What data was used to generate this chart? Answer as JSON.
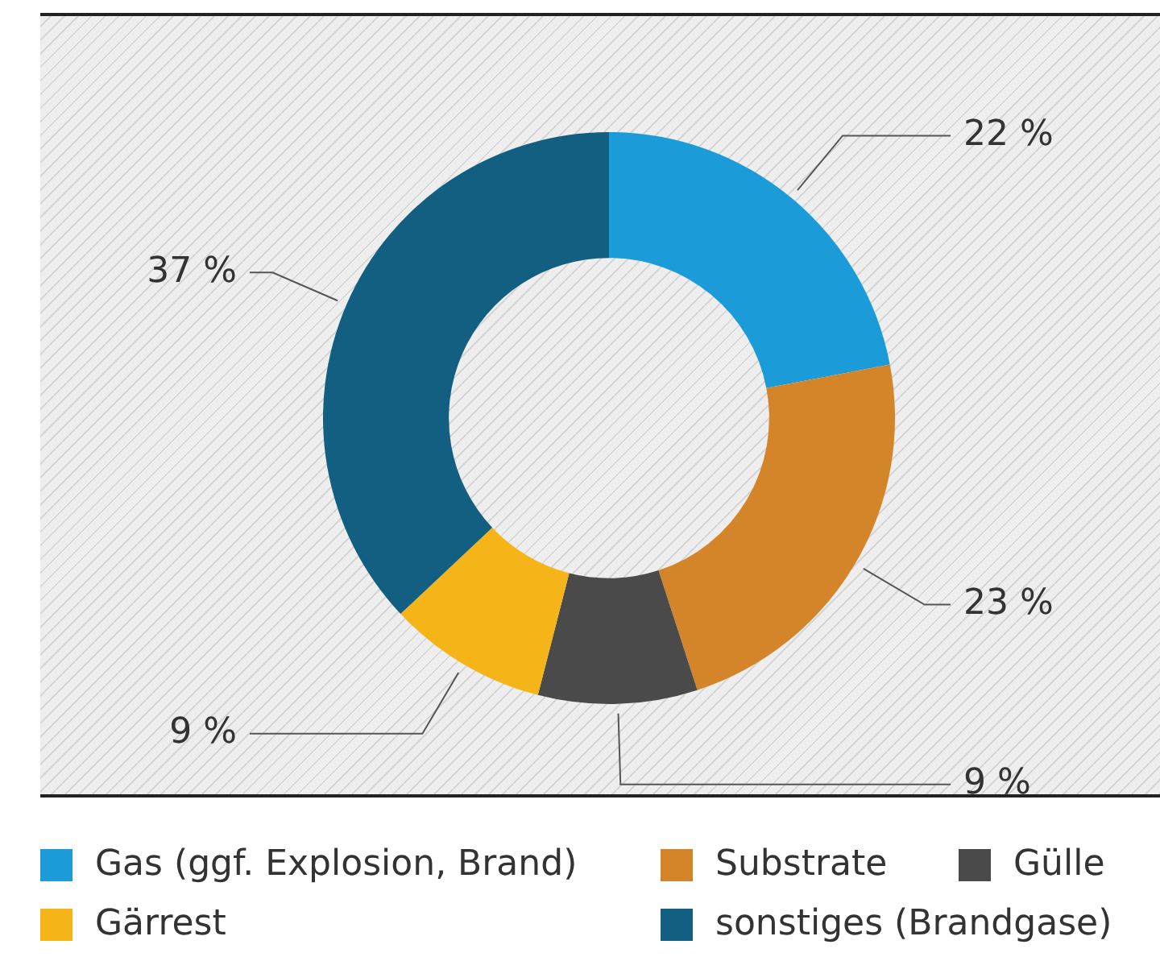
{
  "chart_data": {
    "type": "donut",
    "categories": [
      "Gas (ggf. Explosion, Brand)",
      "Substrate",
      "Gülle",
      "Gärrest",
      "sonstiges (Brandgase)"
    ],
    "values": [
      22,
      23,
      9,
      9,
      37
    ],
    "colors": [
      "#1b9cd8",
      "#d4852a",
      "#4a4a4a",
      "#f5b518",
      "#135f82"
    ],
    "value_labels": [
      "22 %",
      "23 %",
      "9 %",
      "9 %",
      "37 %"
    ],
    "legend": "bottom"
  }
}
